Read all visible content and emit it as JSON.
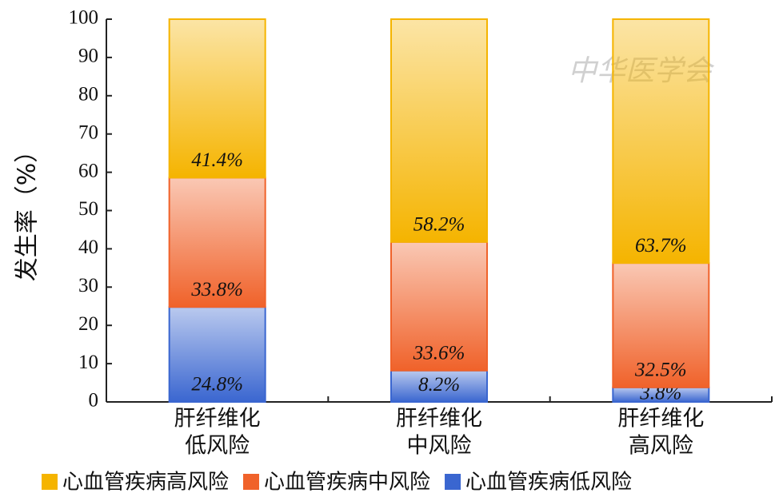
{
  "chart_data": {
    "type": "stacked_bar",
    "ylabel": "发生率（%）",
    "watermark": "中华医学会",
    "categories": [
      [
        "肝纤维化",
        "低风险"
      ],
      [
        "肝纤维化",
        "中风险"
      ],
      [
        "肝纤维化",
        "高风险"
      ]
    ],
    "series": [
      {
        "name": "心血管疾病高风险",
        "color": "#f5b400",
        "values": [
          41.4,
          58.2,
          63.7
        ],
        "value_labels": [
          "41.4%",
          "58.2%",
          "63.7%"
        ]
      },
      {
        "name": "心血管疾病中风险",
        "color": "#f0622a",
        "values": [
          33.8,
          33.6,
          32.5
        ],
        "value_labels": [
          "33.8%",
          "33.6%",
          "32.5%"
        ]
      },
      {
        "name": "心血管疾病低风险",
        "color": "#3a66d0",
        "values": [
          24.8,
          8.2,
          3.8
        ],
        "value_labels": [
          "24.8%",
          "8.2%",
          "3.8%"
        ]
      }
    ],
    "ylim": [
      0,
      100
    ],
    "yticks": [
      0,
      10,
      20,
      30,
      40,
      50,
      60,
      70,
      80,
      90,
      100
    ],
    "legend": "bottom"
  }
}
